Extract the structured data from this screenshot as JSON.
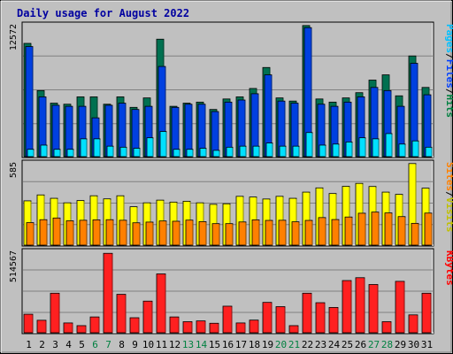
{
  "chart_data": {
    "type": "bar",
    "title": "Daily usage for August 2022",
    "categories": [
      "1",
      "2",
      "3",
      "4",
      "5",
      "6",
      "7",
      "8",
      "9",
      "10",
      "11",
      "12",
      "13",
      "14",
      "15",
      "16",
      "17",
      "18",
      "19",
      "20",
      "21",
      "22",
      "23",
      "24",
      "25",
      "26",
      "27",
      "28",
      "29",
      "30",
      "31"
    ],
    "weekend_days": [
      "6",
      "7",
      "13",
      "14",
      "20",
      "21",
      "27",
      "28"
    ],
    "panels": [
      {
        "name": "top",
        "y_max_label": "12572",
        "ymax": 12572,
        "right_labels": [
          {
            "text": "Hits",
            "color": "#008040"
          },
          {
            "text": "/",
            "color": "#000000"
          },
          {
            "text": "Files",
            "color": "#0040ff"
          },
          {
            "text": "/",
            "color": "#000000"
          },
          {
            "text": "Pages",
            "color": "#00c0ff"
          }
        ],
        "series": [
          {
            "name": "Hits",
            "color": "#007050",
            "values": [
              10800,
              6300,
              5100,
              5000,
              5700,
              5700,
              5000,
              5700,
              4700,
              5600,
              11200,
              4800,
              5100,
              5200,
              4500,
              5500,
              5700,
              6500,
              8500,
              5600,
              5300,
              12500,
              5500,
              5200,
              5600,
              6100,
              7300,
              7800,
              5800,
              9600,
              6600
            ]
          },
          {
            "name": "Files",
            "color": "#0040e0",
            "values": [
              10500,
              5700,
              4900,
              4800,
              4800,
              3700,
              4900,
              5100,
              4500,
              4800,
              8600,
              4700,
              5000,
              5000,
              4300,
              5200,
              5400,
              6000,
              7800,
              5300,
              5100,
              12300,
              5000,
              4800,
              5200,
              5700,
              6600,
              6300,
              4800,
              8900,
              5900
            ]
          },
          {
            "name": "Pages",
            "color": "#00e0ff",
            "values": [
              700,
              1100,
              700,
              700,
              1700,
              1700,
              1000,
              900,
              800,
              1800,
              2400,
              700,
              700,
              800,
              600,
              900,
              1000,
              1000,
              1300,
              1000,
              1000,
              2300,
              1100,
              1200,
              1400,
              1800,
              1700,
              2200,
              1200,
              1500,
              900
            ]
          }
        ]
      },
      {
        "name": "middle",
        "y_max_label": "585",
        "ymax": 585,
        "right_labels": [
          {
            "text": "Visits",
            "color": "#c0c000"
          },
          {
            "text": "/",
            "color": "#000000"
          },
          {
            "text": "Sites",
            "color": "#ff8000"
          }
        ],
        "series": [
          {
            "name": "Visits",
            "color": "#ffff00",
            "values": [
              315,
              357,
              333,
              301,
              317,
              351,
              329,
              351,
              273,
              301,
              320,
              306,
              312,
              301,
              290,
              294,
              347,
              342,
              328,
              347,
              333,
              377,
              407,
              367,
              418,
              439,
              417,
              377,
              361,
              580,
              405
            ]
          },
          {
            "name": "Sites",
            "color": "#ff8000",
            "values": [
              160,
              181,
              193,
              173,
              177,
              180,
              181,
              177,
              159,
              164,
              172,
              170,
              178,
              167,
              153,
              153,
              165,
              180,
              176,
              177,
              166,
              176,
              196,
              182,
              200,
              227,
              235,
              229,
              203,
              155,
              228
            ]
          }
        ]
      },
      {
        "name": "bottom",
        "y_max_label": "514567",
        "ymax": 514567,
        "right_labels": [
          {
            "text": "KBytes",
            "color": "#ff0000"
          }
        ],
        "series": [
          {
            "name": "KBytes",
            "color": "#ff2020",
            "values": [
              117000,
              79000,
              250000,
              62000,
              45000,
              100000,
              502000,
              243000,
              95000,
              200000,
              372000,
              100000,
              70000,
              75000,
              60000,
              168000,
              62000,
              80000,
              192000,
              165000,
              45000,
              250000,
              190000,
              160000,
              330000,
              348000,
              305000,
              70000,
              325000,
              113000,
              250000
            ]
          }
        ]
      }
    ]
  }
}
